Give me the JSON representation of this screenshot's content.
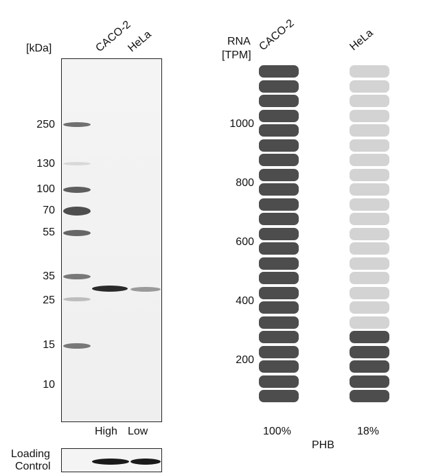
{
  "western_blot": {
    "unit_label": "[kDa]",
    "lane_labels": [
      "CACO-2",
      "HeLa"
    ],
    "mw_markers": [
      "250",
      "130",
      "100",
      "70",
      "55",
      "35",
      "25",
      "15",
      "10"
    ],
    "expression_labels": [
      "High",
      "Low"
    ],
    "loading_control_label": [
      "Loading",
      "Control"
    ]
  },
  "rna_chart": {
    "title_lines": [
      "RNA",
      "[TPM]"
    ],
    "samples": [
      {
        "name": "CACO-2",
        "percent_label": "100%",
        "filled": 23,
        "total": 23,
        "color": "#4d4d4d"
      },
      {
        "name": "HeLa",
        "percent_label": "18%",
        "filled": 5,
        "total": 23,
        "color": "#4d4d4d"
      }
    ],
    "empty_color": "#d3d3d3",
    "y_ticks": [
      "1000",
      "800",
      "600",
      "400",
      "200"
    ],
    "gene": "PHB"
  }
}
